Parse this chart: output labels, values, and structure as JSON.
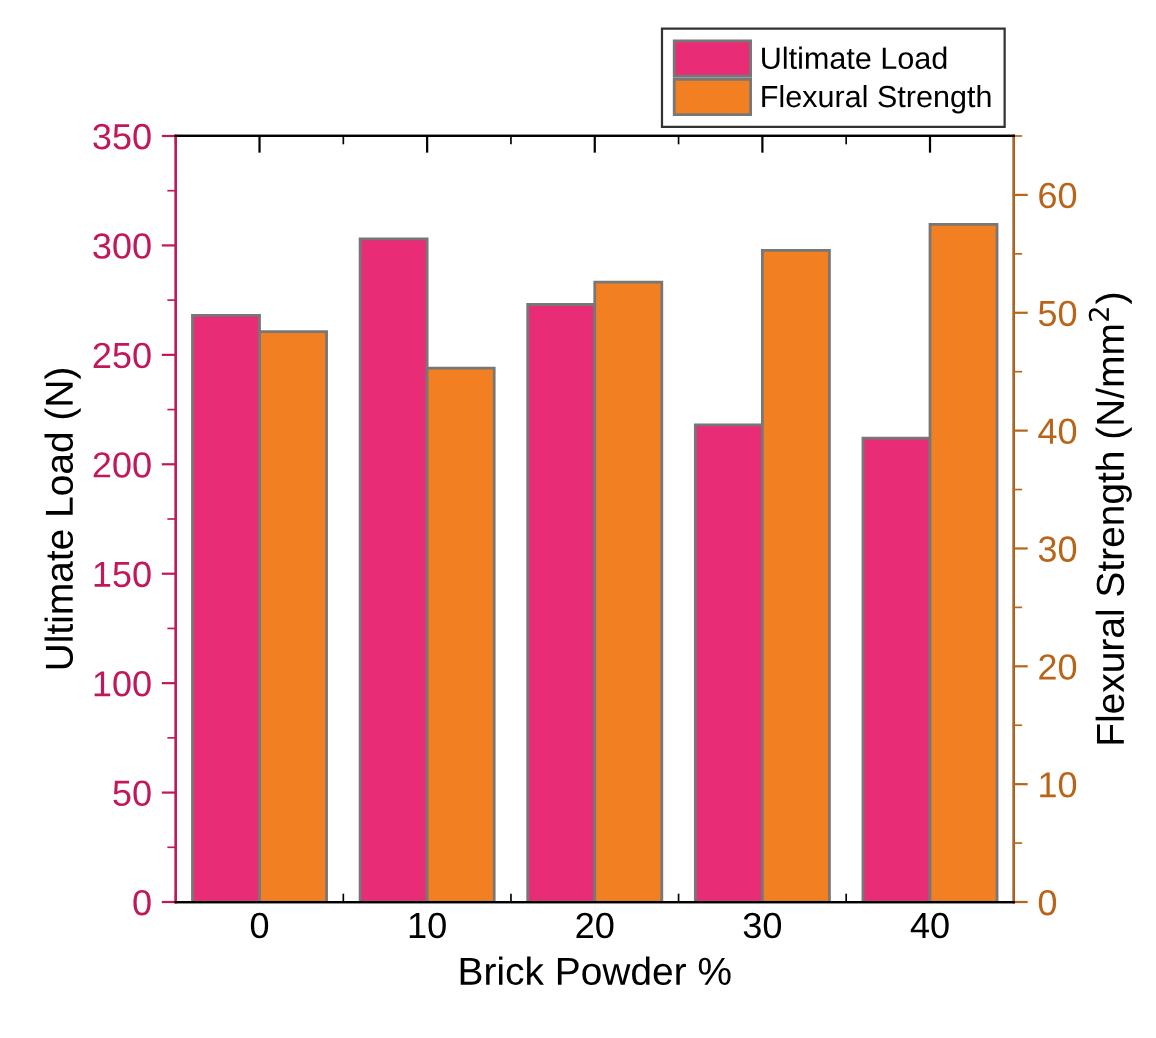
{
  "chart_data": {
    "type": "bar",
    "xlabel": "Brick Powder %",
    "ylabel": "Ultimate Load (N)",
    "y2label": "Flexural Strength (N/mm$^{2}$)",
    "categories": [
      "0",
      "10",
      "20",
      "30",
      "40"
    ],
    "series": [
      {
        "name": "Ultimate Load",
        "color": "#e82c75",
        "values": [
          268,
          303,
          273,
          218,
          212
        ]
      },
      {
        "name": "Flexural Strength",
        "color": "#f28022",
        "axis": "y2",
        "values": [
          48.4,
          45.3,
          52.6,
          55.3,
          57.5
        ]
      }
    ],
    "ylim": [
      0,
      350
    ],
    "yticks": [
      0,
      50,
      100,
      150,
      200,
      250,
      300,
      350
    ],
    "y2lim": [
      0,
      65
    ],
    "y2ticks": [
      0,
      10,
      20,
      30,
      40,
      50,
      60
    ],
    "legend": "top right",
    "grid": false
  }
}
